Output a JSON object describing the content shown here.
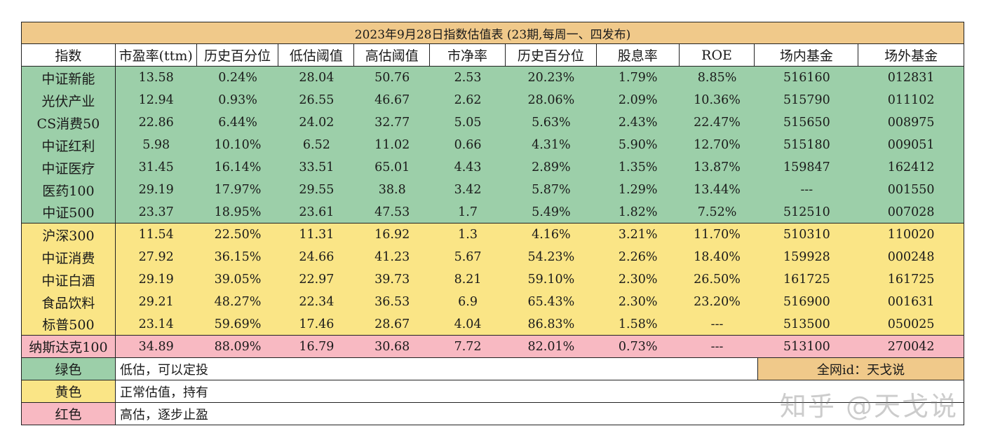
{
  "title": "2023年9月28日指数估值表 (23期,每周一、四发布)",
  "headers": [
    "指数",
    "市盈率(ttm)",
    "历史百分位",
    "低估阈值",
    "高估阈值",
    "市净率",
    "历史百分位",
    "股息率",
    "ROE",
    "场内基金",
    "场外基金"
  ],
  "rows": [
    {
      "zone": "green",
      "cells": [
        "中证新能",
        "13.58",
        "0.24%",
        "28.04",
        "50.76",
        "2.53",
        "20.23%",
        "1.79%",
        "8.85%",
        "516160",
        "012831"
      ]
    },
    {
      "zone": "green",
      "cells": [
        "光伏产业",
        "12.94",
        "0.93%",
        "26.55",
        "46.67",
        "2.62",
        "28.06%",
        "2.09%",
        "10.36%",
        "515790",
        "011102"
      ]
    },
    {
      "zone": "green",
      "cells": [
        "CS消费50",
        "22.86",
        "6.44%",
        "24.02",
        "32.77",
        "5.05",
        "5.63%",
        "2.43%",
        "22.47%",
        "515650",
        "008975"
      ]
    },
    {
      "zone": "green",
      "cells": [
        "中证红利",
        "5.98",
        "10.10%",
        "6.52",
        "11.02",
        "0.66",
        "4.31%",
        "5.90%",
        "12.70%",
        "515180",
        "009051"
      ]
    },
    {
      "zone": "green",
      "cells": [
        "中证医疗",
        "31.45",
        "16.14%",
        "33.51",
        "65.01",
        "4.43",
        "2.89%",
        "1.35%",
        "13.87%",
        "159847",
        "162412"
      ]
    },
    {
      "zone": "green",
      "cells": [
        "医药100",
        "29.19",
        "17.97%",
        "29.55",
        "38.8",
        "3.42",
        "5.87%",
        "1.29%",
        "13.44%",
        "---",
        "001550"
      ]
    },
    {
      "zone": "green",
      "cells": [
        "中证500",
        "23.37",
        "18.95%",
        "23.61",
        "47.53",
        "1.7",
        "5.49%",
        "1.82%",
        "7.52%",
        "512510",
        "007028"
      ]
    },
    {
      "zone": "yellow",
      "cells": [
        "沪深300",
        "11.54",
        "22.50%",
        "11.31",
        "16.92",
        "1.3",
        "4.16%",
        "3.21%",
        "11.70%",
        "510310",
        "110020"
      ]
    },
    {
      "zone": "yellow",
      "cells": [
        "中证消费",
        "27.92",
        "36.15%",
        "24.66",
        "41.23",
        "5.67",
        "54.23%",
        "2.26%",
        "18.40%",
        "159928",
        "000248"
      ]
    },
    {
      "zone": "yellow",
      "cells": [
        "中证白酒",
        "29.19",
        "39.05%",
        "22.97",
        "39.73",
        "8.21",
        "59.10%",
        "2.30%",
        "26.50%",
        "161725",
        "161725"
      ]
    },
    {
      "zone": "yellow",
      "cells": [
        "食品饮料",
        "29.21",
        "48.27%",
        "22.34",
        "36.53",
        "6.9",
        "65.43%",
        "2.30%",
        "23.20%",
        "516900",
        "001631"
      ]
    },
    {
      "zone": "yellow",
      "cells": [
        "标普500",
        "23.14",
        "59.69%",
        "17.46",
        "28.67",
        "4.04",
        "86.83%",
        "1.58%",
        "---",
        "513500",
        "050025"
      ]
    },
    {
      "zone": "pink",
      "cells": [
        "纳斯达克100",
        "34.89",
        "88.09%",
        "16.79",
        "30.68",
        "7.72",
        "82.01%",
        "0.73%",
        "---",
        "513100",
        "270042"
      ]
    }
  ],
  "legend": [
    {
      "color": "绿色",
      "text": "低估，可以定投",
      "zone": "green"
    },
    {
      "color": "黄色",
      "text": "正常估值，持有",
      "zone": "yellow"
    },
    {
      "color": "红色",
      "text": "高估，逐步止盈",
      "zone": "pink"
    }
  ],
  "credit": "全网id：天戈说",
  "watermark": "知乎 @天戈说",
  "colors": {
    "green": "#9ccfa9",
    "yellow": "#fae586",
    "pink": "#f8b9c2",
    "title": "#f0c98a"
  }
}
